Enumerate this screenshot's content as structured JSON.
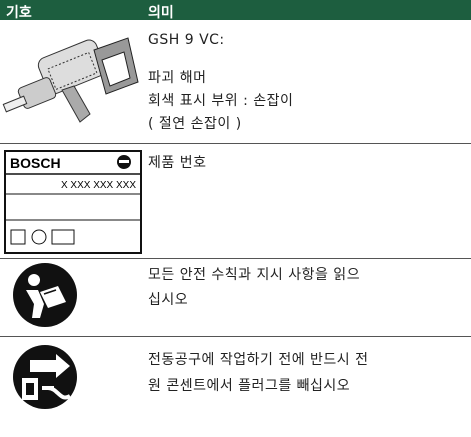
{
  "header": {
    "symbol": "기호",
    "meaning": "의미"
  },
  "rows": [
    {
      "lines": [
        "GSH 9 VC:",
        "파괴 해머",
        "회색 표시 부위 : 손잡이",
        "( 절연 손잡이 )"
      ]
    },
    {
      "nameplate": {
        "brand": "BOSCH",
        "number": "X XXX XXX XXX"
      },
      "lines": [
        "제품 번호"
      ]
    },
    {
      "lines": [
        "모든 안전 수칙과 지시 사항을 읽으",
        "십시오"
      ]
    },
    {
      "lines": [
        "전동공구에 작업하기 전에 반드시 전",
        "원 콘센트에서 플러그를 빼십시오"
      ]
    }
  ]
}
